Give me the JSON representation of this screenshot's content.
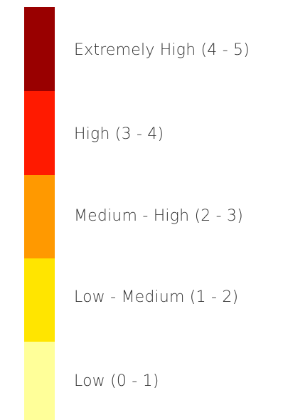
{
  "legend": {
    "items": [
      {
        "label": "Extremely High (4 - 5)",
        "color": "#990000"
      },
      {
        "label": "High (3 - 4)",
        "color": "#ff1a00"
      },
      {
        "label": "Medium - High (2 - 3)",
        "color": "#ff9900"
      },
      {
        "label": "Low - Medium (1 - 2)",
        "color": "#ffe500"
      },
      {
        "label": "Low (0 - 1)",
        "color": "#ffff99"
      }
    ]
  }
}
